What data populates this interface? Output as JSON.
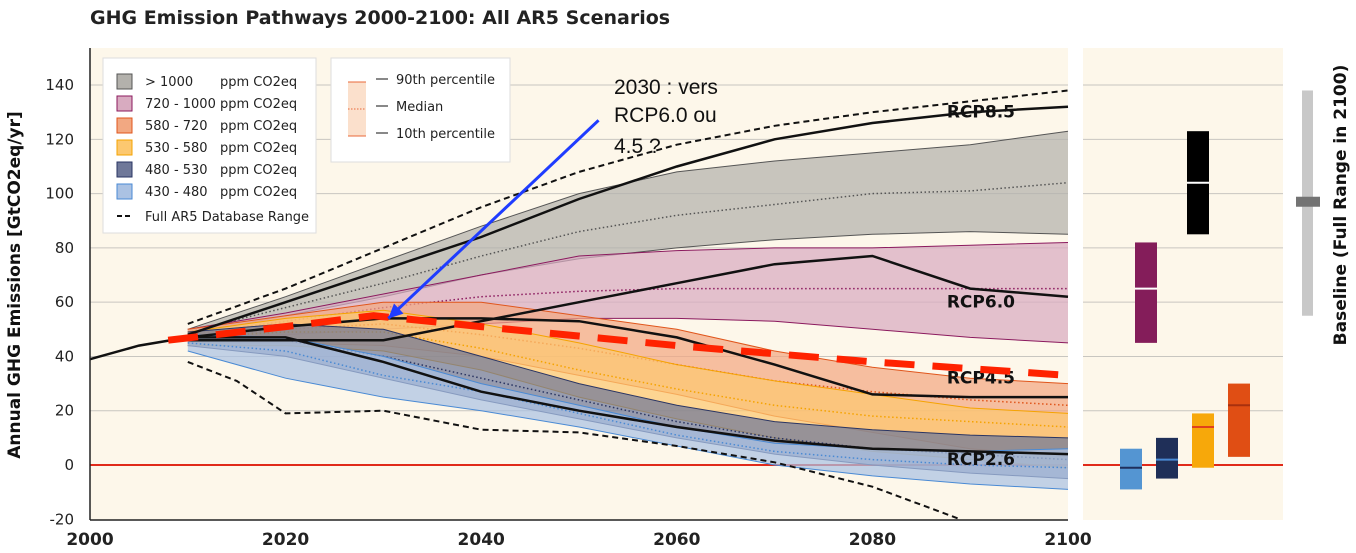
{
  "chart_data": {
    "type": "area",
    "title": "GHG Emission Pathways 2000-2100: All AR5 Scenarios",
    "ylabel": "Annual GHG Emissions [GtCO2eq/yr]",
    "xlabel": "",
    "xlim": [
      2000,
      2100
    ],
    "ylim": [
      -20,
      150
    ],
    "x_ticks": [
      "2000",
      "2020",
      "2040",
      "2060",
      "2080",
      "2100"
    ],
    "y_ticks": [
      "-20",
      "0",
      "20",
      "40",
      "60",
      "80",
      "100",
      "120",
      "140"
    ],
    "grid": true,
    "legend_position": "top-left",
    "x": [
      2010,
      2020,
      2030,
      2040,
      2050,
      2060,
      2070,
      2080,
      2090,
      2100
    ],
    "bands": [
      {
        "name": "> 1000",
        "unit": "ppm CO2eq",
        "fill": "#b3b1ac",
        "stroke": "#555555",
        "p90": [
          50,
          62,
          75,
          88,
          100,
          108,
          112,
          115,
          118,
          123
        ],
        "median": [
          49,
          58,
          67,
          77,
          86,
          92,
          96,
          100,
          101,
          104
        ],
        "p10": [
          48,
          55,
          62,
          70,
          76,
          80,
          83,
          85,
          86,
          85
        ]
      },
      {
        "name": "720 - 1000",
        "unit": "ppm CO2eq",
        "fill": "#d8abc0",
        "stroke": "#8b1a5e",
        "p90": [
          50,
          56,
          63,
          70,
          77,
          79,
          80,
          80,
          81,
          82
        ],
        "median": [
          48,
          53,
          58,
          62,
          64,
          65,
          65,
          65,
          65,
          65
        ],
        "p10": [
          46,
          48,
          50,
          52,
          54,
          54,
          53,
          50,
          47,
          45
        ]
      },
      {
        "name": "580 - 720",
        "unit": "ppm CO2eq",
        "fill": "#f2a882",
        "stroke": "#e0561c",
        "p90": [
          50,
          55,
          60,
          60,
          55,
          50,
          42,
          36,
          32,
          30
        ],
        "median": [
          47,
          50,
          52,
          48,
          43,
          37,
          31,
          27,
          24,
          22
        ],
        "p10": [
          45,
          45,
          44,
          40,
          33,
          26,
          18,
          12,
          6,
          3
        ]
      },
      {
        "name": "530 - 580",
        "unit": "ppm CO2eq",
        "fill": "#fcc870",
        "stroke": "#f5a300",
        "p90": [
          49,
          54,
          57,
          52,
          45,
          37,
          31,
          26,
          21,
          19
        ],
        "median": [
          47,
          49,
          49,
          43,
          35,
          28,
          22,
          18,
          16,
          14
        ],
        "p10": [
          44,
          44,
          42,
          35,
          25,
          17,
          10,
          5,
          2,
          -1
        ]
      },
      {
        "name": "480 - 530",
        "unit": "ppm CO2eq",
        "fill": "#6f7899",
        "stroke": "#2a3563",
        "p90": [
          49,
          52,
          50,
          40,
          30,
          22,
          16,
          13,
          11,
          10
        ],
        "median": [
          46,
          46,
          40,
          32,
          24,
          16,
          10,
          6,
          4,
          2
        ],
        "p10": [
          44,
          40,
          32,
          24,
          17,
          10,
          4,
          0,
          -3,
          -5
        ]
      },
      {
        "name": "430 - 480",
        "unit": "ppm CO2eq",
        "fill": "#abc2e3",
        "stroke": "#4a8ad4",
        "p90": [
          48,
          47,
          40,
          30,
          22,
          14,
          8,
          6,
          5,
          6
        ],
        "median": [
          45,
          42,
          33,
          27,
          19,
          11,
          5,
          2,
          0,
          -1
        ],
        "p10": [
          42,
          32,
          25,
          20,
          14,
          7,
          0,
          -4,
          -7,
          -9
        ]
      }
    ],
    "full_range": {
      "name": "Full AR5 Database Range",
      "upper": {
        "x": [
          2010,
          2020,
          2030,
          2040,
          2050,
          2060,
          2070,
          2080,
          2090,
          2100
        ],
        "y": [
          52,
          65,
          80,
          95,
          108,
          118,
          125,
          130,
          134,
          138
        ]
      },
      "lower": {
        "x": [
          2010,
          2015,
          2020,
          2030,
          2040,
          2050,
          2060,
          2070,
          2080,
          2089
        ],
        "y": [
          38,
          31,
          19,
          20,
          13,
          12,
          7,
          1,
          -8,
          -20
        ]
      }
    },
    "historical": {
      "x": [
        2000,
        2005,
        2010
      ],
      "y": [
        39,
        44,
        47
      ]
    },
    "rcps": [
      {
        "name": "RCP8.5",
        "y": [
          48,
          60,
          72,
          84,
          98,
          110,
          120,
          126,
          130,
          132
        ]
      },
      {
        "name": "RCP6.0",
        "y": [
          46,
          46,
          46,
          53,
          60,
          67,
          74,
          77,
          65,
          62
        ]
      },
      {
        "name": "RCP4.5",
        "y": [
          47,
          51,
          54,
          54,
          53,
          47,
          37,
          26,
          25,
          25
        ]
      },
      {
        "name": "RCP2.6",
        "y": [
          47,
          47,
          38,
          27,
          20,
          14,
          9,
          6,
          5,
          4
        ]
      }
    ],
    "projection_line": {
      "x": [
        2008,
        2020,
        2029,
        2040,
        2060,
        2080,
        2100
      ],
      "y": [
        46,
        51,
        55,
        51,
        44,
        38,
        33
      ],
      "color": "#ff2200"
    },
    "annotation": {
      "lines": [
        "2030 : vers",
        "RCP6.0 ou",
        "4.5 ?"
      ],
      "arrow_from": [
        2052,
        127
      ],
      "arrow_to": [
        2030.5,
        54
      ],
      "color": "#1f3cff"
    },
    "percentile_legend": [
      "90th percentile",
      "Median",
      "10th percentile"
    ],
    "percentile_sup": "th",
    "range_2100": [
      {
        "name": "430 - 480",
        "min": -9,
        "median": -1,
        "max": 6,
        "color": "#5495d2",
        "mcolor": "#1f2f5c"
      },
      {
        "name": "480 - 530",
        "min": -5,
        "median": 2,
        "max": 10,
        "color": "#1f2f58",
        "mcolor": "#4a8ad4"
      },
      {
        "name": "530 - 580",
        "min": -1,
        "median": 14,
        "max": 19,
        "color": "#f7a80a",
        "mcolor": "#e0401c"
      },
      {
        "name": "580 - 720",
        "min": 3,
        "median": 22,
        "max": 30,
        "color": "#e04e14",
        "mcolor": "#a8300e"
      },
      {
        "name": "720 - 1000",
        "min": 45,
        "median": 65,
        "max": 82,
        "color": "#841d5a",
        "mcolor": "#ffffff"
      },
      {
        "name": "> 1000",
        "min": 85,
        "median": 104,
        "max": 123,
        "color": "#000000",
        "mcolor": "#ffffff"
      }
    ],
    "baseline_2100": {
      "label": "Baseline (Full Range in 2100)",
      "min": 55,
      "median": 97,
      "max": 138
    }
  }
}
